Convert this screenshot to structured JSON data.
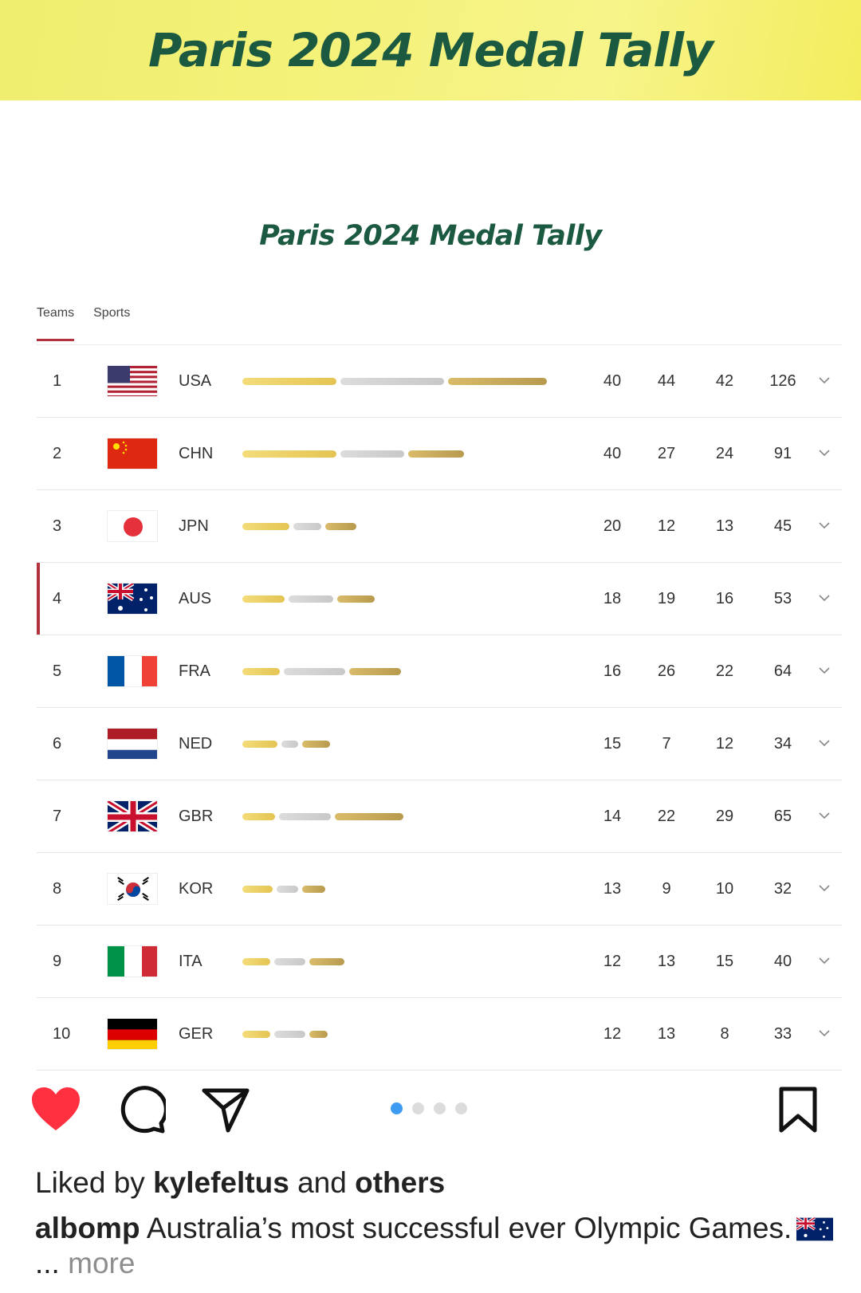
{
  "banner": {
    "title": "Paris 2024 Medal Tally"
  },
  "tally": {
    "title": "Paris 2024 Medal Tally"
  },
  "tabs": [
    {
      "label": "Teams",
      "active": true
    },
    {
      "label": "Sports",
      "active": false
    }
  ],
  "rows": [
    {
      "rank": "1",
      "code": "USA",
      "flag": "usa-flag-icon",
      "gold": 40,
      "silver": 44,
      "bronze": 42,
      "total": 126
    },
    {
      "rank": "2",
      "code": "CHN",
      "flag": "china-flag-icon",
      "gold": 40,
      "silver": 27,
      "bronze": 24,
      "total": 91
    },
    {
      "rank": "3",
      "code": "JPN",
      "flag": "japan-flag-icon",
      "gold": 20,
      "silver": 12,
      "bronze": 13,
      "total": 45
    },
    {
      "rank": "4",
      "code": "AUS",
      "flag": "australia-flag-icon",
      "gold": 18,
      "silver": 19,
      "bronze": 16,
      "total": 53,
      "highlight": true
    },
    {
      "rank": "5",
      "code": "FRA",
      "flag": "france-flag-icon",
      "gold": 16,
      "silver": 26,
      "bronze": 22,
      "total": 64
    },
    {
      "rank": "6",
      "code": "NED",
      "flag": "netherlands-flag-icon",
      "gold": 15,
      "silver": 7,
      "bronze": 12,
      "total": 34
    },
    {
      "rank": "7",
      "code": "GBR",
      "flag": "uk-flag-icon",
      "gold": 14,
      "silver": 22,
      "bronze": 29,
      "total": 65
    },
    {
      "rank": "8",
      "code": "KOR",
      "flag": "korea-flag-icon",
      "gold": 13,
      "silver": 9,
      "bronze": 10,
      "total": 32
    },
    {
      "rank": "9",
      "code": "ITA",
      "flag": "italy-flag-icon",
      "gold": 12,
      "silver": 13,
      "bronze": 15,
      "total": 40
    },
    {
      "rank": "10",
      "code": "GER",
      "flag": "germany-flag-icon",
      "gold": 12,
      "silver": 13,
      "bronze": 8,
      "total": 33
    }
  ],
  "post": {
    "liked_prefix": "Liked by",
    "liked_user": "kylefeltus",
    "liked_and": "and",
    "liked_others": "others",
    "author": "albomp",
    "caption": "Australia’s most successful ever Olympic Games.",
    "ellipsis": "...",
    "more": "more"
  },
  "carousel": {
    "count": 4,
    "active_index": 0
  },
  "colors": {
    "like": "#ff3040",
    "dot_active": "#3e9bf2",
    "accent": "#b3323d",
    "title_green": "#1b5940"
  }
}
